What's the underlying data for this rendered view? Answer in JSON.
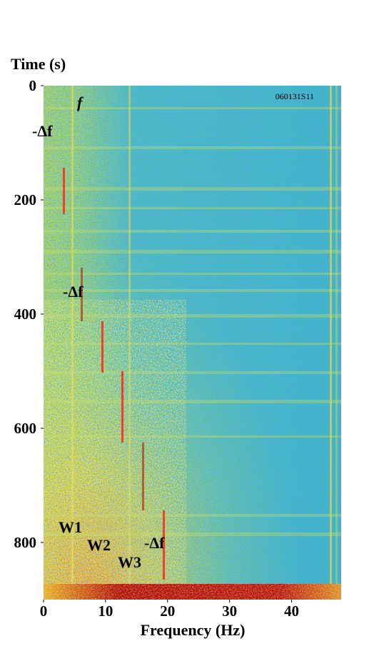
{
  "chart_data": {
    "type": "heatmap",
    "y_label": "Time (s)",
    "x_label": "Frequency (Hz)",
    "xlim": [
      0,
      48
    ],
    "ylim": [
      0,
      900
    ],
    "y_inverted": true,
    "xticks": [
      0,
      10,
      20,
      30,
      40
    ],
    "yticks": [
      0,
      200,
      400,
      600,
      800
    ],
    "id_label": "060131S11",
    "annotations": [
      "f",
      "-Δf",
      "-Δf",
      "-Δf",
      "W1",
      "W2",
      "W3"
    ]
  }
}
